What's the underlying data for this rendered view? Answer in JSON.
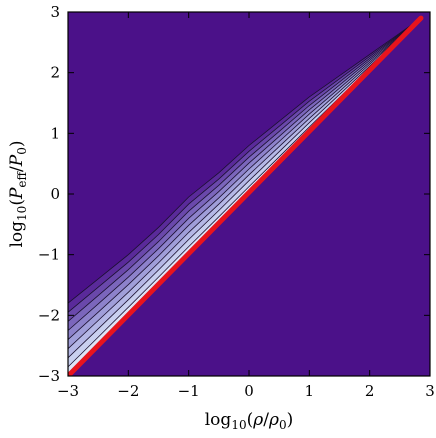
{
  "chart_data": {
    "type": "heatmap",
    "title": "",
    "xlabel": "log10(ρ/ρ0)",
    "ylabel": "log10(Peff/P0)",
    "xlim": [
      -3,
      3
    ],
    "ylim": [
      -3,
      3
    ],
    "x_ticks": [
      "−3",
      "−2",
      "−1",
      "0",
      "1",
      "2",
      "3"
    ],
    "y_ticks": [
      "−3",
      "−2",
      "−1",
      "0",
      "1",
      "2",
      "3"
    ],
    "x_tick_values": [
      -3,
      -2,
      -1,
      0,
      1,
      2,
      3
    ],
    "y_tick_values": [
      -3,
      -2,
      -1,
      0,
      1,
      2,
      3
    ],
    "grid": false,
    "colors": {
      "background": "#4b1189",
      "contour_fill": [
        "#5a2a9a",
        "#6a48ab",
        "#7b66bc",
        "#8d82cb",
        "#a09ed9",
        "#b5b8e6",
        "#c9d0ef",
        "#dde5f7"
      ],
      "contour_line": "#1b1030",
      "ridge": "#e8141d"
    },
    "ridge_line": {
      "x": [
        -3.0,
        2.85
      ],
      "y": [
        -3.0,
        2.9
      ]
    },
    "contour_band": {
      "upper_edge_x": [
        -3.0,
        -2.5,
        -2.0,
        -1.5,
        -1.0,
        -0.5,
        0.0,
        0.5,
        1.0,
        1.5,
        2.0,
        2.5,
        2.85
      ],
      "upper_edge_y": [
        -1.8,
        -1.4,
        -1.0,
        -0.55,
        -0.05,
        0.35,
        0.8,
        1.2,
        1.6,
        1.95,
        2.3,
        2.65,
        2.9
      ]
    }
  }
}
